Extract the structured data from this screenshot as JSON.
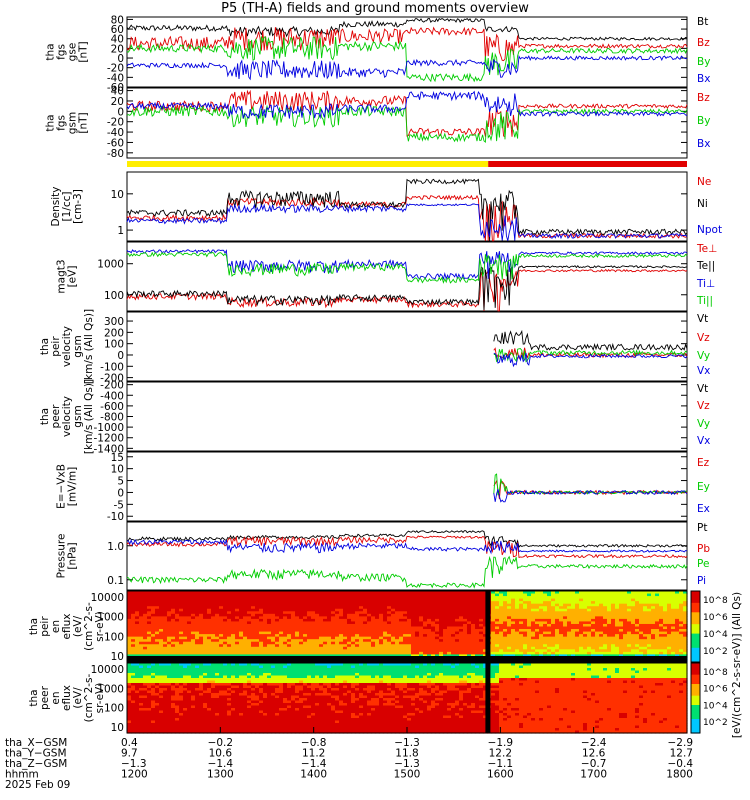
{
  "title": "P5 (TH-A) fields and ground moments overview",
  "colors": {
    "black": "#000000",
    "red": "#e00000",
    "green": "#00cc00",
    "blue": "#0000e0",
    "yellow": "#ffee00",
    "bar_red": "#e00000"
  },
  "chart_data": [
    {
      "type": "line",
      "panel": "fgs",
      "ylabel_lines": [
        "tha",
        "fgs",
        "gse",
        "[nT]"
      ],
      "yticks": [
        "80",
        "60",
        "40",
        "20",
        "0",
        "-20",
        "-40",
        "-60"
      ],
      "ylim": [
        -60,
        85
      ],
      "series": [
        {
          "name": "Bt",
          "color": "#000000"
        },
        {
          "name": "Bz",
          "color": "#e00000"
        },
        {
          "name": "By",
          "color": "#00cc00"
        },
        {
          "name": "Bx",
          "color": "#0000e0"
        }
      ]
    },
    {
      "type": "line",
      "panel": "fgs-gsm",
      "ylabel_lines": [
        "tha",
        "fgs",
        "gsm",
        "[nT]"
      ],
      "yticks": [
        "40",
        "20",
        "0",
        "-20",
        "-40",
        "-60",
        "-80"
      ],
      "ylim": [
        -90,
        45
      ],
      "series": [
        {
          "name": "Bz",
          "color": "#e00000"
        },
        {
          "name": "By",
          "color": "#00cc00"
        },
        {
          "name": "Bx",
          "color": "#0000e0"
        }
      ]
    },
    {
      "type": "line",
      "panel": "density",
      "ylabel_lines": [
        "Density",
        "[1/cc]",
        "[cm-3]"
      ],
      "log": true,
      "yticks": [
        "10",
        "1"
      ],
      "ylim": [
        0.5,
        40
      ],
      "series": [
        {
          "name": "Ne",
          "color": "#e00000"
        },
        {
          "name": "Ni",
          "color": "#000000"
        },
        {
          "name": "Npot",
          "color": "#0000e0"
        }
      ]
    },
    {
      "type": "line",
      "panel": "temperature",
      "ylabel_lines": [
        "magt3",
        "[eV]"
      ],
      "log": true,
      "yticks": [
        "1000",
        "100"
      ],
      "ylim": [
        30,
        5000
      ],
      "series": [
        {
          "name": "Te⊥",
          "color": "#e00000"
        },
        {
          "name": "Te||",
          "color": "#000000"
        },
        {
          "name": "Ti⊥",
          "color": "#0000e0"
        },
        {
          "name": "Ti||",
          "color": "#00cc00"
        }
      ]
    },
    {
      "type": "line",
      "panel": "peir-velocity",
      "ylabel_lines": [
        "tha",
        "peir",
        "velocity",
        "gsm",
        "[km/s (All Qs)]"
      ],
      "yticks": [
        "300",
        "200",
        "100",
        "0",
        "-100",
        "-200"
      ],
      "ylim": [
        -230,
        380
      ],
      "series": [
        {
          "name": "Vt",
          "color": "#000000"
        },
        {
          "name": "Vz",
          "color": "#e00000"
        },
        {
          "name": "Vy",
          "color": "#00cc00"
        },
        {
          "name": "Vx",
          "color": "#0000e0"
        }
      ]
    },
    {
      "type": "line",
      "panel": "peer-velocity",
      "ylabel_lines": [
        "tha",
        "peer",
        "velocity",
        "gsm",
        "[km/s (All Qs)]"
      ],
      "yticks": [
        "-200",
        "-400",
        "-600",
        "-800",
        "-1000",
        "-1200",
        "-1400"
      ],
      "ylim": [
        -1450,
        -150
      ],
      "series": [
        {
          "name": "Vt",
          "color": "#000000"
        },
        {
          "name": "Vz",
          "color": "#e00000"
        },
        {
          "name": "Vy",
          "color": "#00cc00"
        },
        {
          "name": "Vx",
          "color": "#0000e0"
        }
      ]
    },
    {
      "type": "line",
      "panel": "efield",
      "ylabel_lines": [
        "E=−VxB",
        "[mV/m]"
      ],
      "yticks": [
        "15",
        "10",
        "5",
        "0",
        "-5",
        "-10"
      ],
      "ylim": [
        -12,
        17
      ],
      "series": [
        {
          "name": "Ez",
          "color": "#e00000"
        },
        {
          "name": "Ey",
          "color": "#00cc00"
        },
        {
          "name": "Ex",
          "color": "#0000e0"
        }
      ]
    },
    {
      "type": "line",
      "panel": "pressure",
      "ylabel_lines": [
        "Pressure",
        "[nPa]"
      ],
      "log": true,
      "yticks": [
        "1.0",
        "0.1"
      ],
      "ylim": [
        0.05,
        5
      ],
      "series": [
        {
          "name": "Pt",
          "color": "#000000"
        },
        {
          "name": "Pb",
          "color": "#e00000"
        },
        {
          "name": "Pe",
          "color": "#00cc00"
        },
        {
          "name": "Pi",
          "color": "#0000e0"
        }
      ]
    },
    {
      "type": "heatmap",
      "panel": "peir-eflux",
      "ylabel_lines": [
        "tha",
        "peir",
        "en",
        "eflux",
        "(eV/",
        "(cm^2-s-",
        "sr-eV)"
      ],
      "log": true,
      "yticks": [
        "10000",
        "1000",
        "100",
        "10"
      ],
      "ylim": [
        5,
        20000
      ],
      "colorbar_ticks": [
        "10^8",
        "10^6",
        "10^4",
        "10^2"
      ]
    },
    {
      "type": "heatmap",
      "panel": "peer-eflux",
      "ylabel_lines": [
        "tha",
        "peer",
        "en",
        "eflux",
        "(eV/",
        "(cm^2-s-",
        "sr-eV)"
      ],
      "log": true,
      "yticks": [
        "10000",
        "1000",
        "100",
        "10"
      ],
      "ylim": [
        5,
        20000
      ],
      "colorbar_ticks": [
        "10^8",
        "10^6",
        "10^4",
        "10^2"
      ],
      "colorbar_label": "[eV/(cm^2-s-sr-eV)] (All Qs)"
    }
  ],
  "footer": {
    "row_labels": [
      "tha_X−GSM",
      "tha_Y−GSM",
      "tha_Z−GSM",
      "hhmm",
      "2025 Feb 09"
    ],
    "columns": [
      {
        "x": "0.4",
        "y": "9.7",
        "z": "−1.3",
        "hhmm": "1200"
      },
      {
        "x": "−0.2",
        "y": "10.6",
        "z": "−1.4",
        "hhmm": "1300"
      },
      {
        "x": "−0.8",
        "y": "11.2",
        "z": "−1.4",
        "hhmm": "1400"
      },
      {
        "x": "−1.3",
        "y": "11.8",
        "z": "−1.3",
        "hhmm": "1500"
      },
      {
        "x": "−1.9",
        "y": "12.2",
        "z": "−1.1",
        "hhmm": "1600"
      },
      {
        "x": "−2.4",
        "y": "12.6",
        "z": "−0.7",
        "hhmm": "1700"
      },
      {
        "x": "−2.9",
        "y": "12.7",
        "z": "−0.4",
        "hhmm": "1800"
      }
    ]
  }
}
